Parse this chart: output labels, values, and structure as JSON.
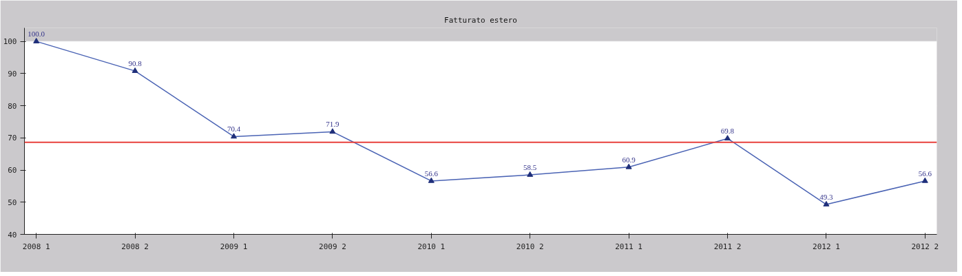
{
  "chart_data": {
    "type": "line",
    "title": "Fatturato estero",
    "categories": [
      "2008 1",
      "2008 2",
      "2009 1",
      "2009 2",
      "2010 1",
      "2010 2",
      "2011 1",
      "2011 2",
      "2012 1",
      "2012 2"
    ],
    "series": [
      {
        "color": "#4a63b4",
        "values": [
          100.0,
          90.8,
          70.4,
          71.9,
          56.6,
          58.5,
          60.9,
          69.8,
          49.3,
          56.6
        ],
        "value_labels": [
          "100.0",
          "90.8",
          "70.4",
          "71.9",
          "56.6",
          "58.5",
          "60.9",
          "69.8",
          "49.3",
          "56.6"
        ]
      }
    ],
    "ylim": [
      40,
      100
    ],
    "yticks": [
      40,
      50,
      60,
      70,
      80,
      90,
      100
    ],
    "grid": "y",
    "marker": "triangle",
    "ref_lines": [
      {
        "axis": "y",
        "value": 68.6,
        "color": "#e8403c"
      }
    ]
  }
}
